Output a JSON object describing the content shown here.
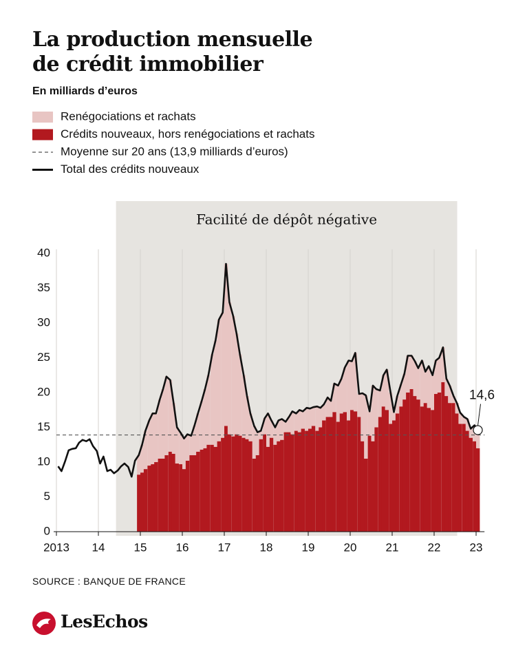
{
  "chart_data": {
    "type": "stacked-bar-line",
    "title": "La production mensuelle de crédit immobilier",
    "subtitle": "En milliards d’euros",
    "source": "SOURCE : BANQUE DE FRANCE",
    "brand": "LesEchos",
    "shaded_region": {
      "label": "Facilité de dépôt négative",
      "x": [
        2014.42,
        2022.55
      ]
    },
    "average": {
      "label": "Moyenne sur 20 ans (13,9 milliards d’euros)",
      "value": 13.9
    },
    "annotation": {
      "label": "14,6",
      "x": 2023,
      "y": 14.6
    },
    "xlim": [
      2013,
      2023.2
    ],
    "ylim": [
      0,
      40
    ],
    "yticks": [
      0,
      5,
      10,
      15,
      20,
      25,
      30,
      35,
      40
    ],
    "xticks": [
      {
        "value": 2013,
        "label": "2013"
      },
      {
        "value": 2014,
        "label": "14"
      },
      {
        "value": 2015,
        "label": "15"
      },
      {
        "value": 2016,
        "label": "16"
      },
      {
        "value": 2017,
        "label": "17"
      },
      {
        "value": 2018,
        "label": "18"
      },
      {
        "value": 2019,
        "label": "19"
      },
      {
        "value": 2020,
        "label": "20"
      },
      {
        "value": 2021,
        "label": "21"
      },
      {
        "value": 2022,
        "label": "22"
      },
      {
        "value": 2023,
        "label": "23"
      }
    ],
    "grid": true,
    "x": [
      2013,
      2013.08,
      2013.17,
      2013.25,
      2013.33,
      2013.42,
      2013.5,
      2013.58,
      2013.67,
      2013.75,
      2013.83,
      2013.92,
      2014,
      2014.08,
      2014.17,
      2014.25,
      2014.33,
      2014.42,
      2014.5,
      2014.58,
      2014.67,
      2014.75,
      2014.83,
      2014.92,
      2015,
      2015.08,
      2015.17,
      2015.25,
      2015.33,
      2015.42,
      2015.5,
      2015.58,
      2015.67,
      2015.75,
      2015.83,
      2015.92,
      2016,
      2016.08,
      2016.17,
      2016.25,
      2016.33,
      2016.42,
      2016.5,
      2016.58,
      2016.67,
      2016.75,
      2016.83,
      2016.92,
      2017,
      2017.08,
      2017.17,
      2017.25,
      2017.33,
      2017.42,
      2017.5,
      2017.58,
      2017.67,
      2017.75,
      2017.83,
      2017.92,
      2018,
      2018.08,
      2018.17,
      2018.25,
      2018.33,
      2018.42,
      2018.5,
      2018.58,
      2018.67,
      2018.75,
      2018.83,
      2018.92,
      2019,
      2019.08,
      2019.17,
      2019.25,
      2019.33,
      2019.42,
      2019.5,
      2019.58,
      2019.67,
      2019.75,
      2019.83,
      2019.92,
      2020,
      2020.08,
      2020.17,
      2020.25,
      2020.33,
      2020.42,
      2020.5,
      2020.58,
      2020.67,
      2020.75,
      2020.83,
      2020.92,
      2021,
      2021.08,
      2021.17,
      2021.25,
      2021.33,
      2021.42,
      2021.5,
      2021.58,
      2021.67,
      2021.75,
      2021.83,
      2021.92,
      2022,
      2022.08,
      2022.17,
      2022.25,
      2022.33,
      2022.42,
      2022.5,
      2022.58,
      2022.67,
      2022.75,
      2022.83,
      2022.92,
      2023
    ],
    "series": [
      {
        "name": "Renégociations et rachats",
        "type": "bar",
        "color": "#e8c5c3",
        "values": [
          null,
          null,
          null,
          null,
          null,
          null,
          null,
          null,
          null,
          null,
          null,
          null,
          null,
          null,
          null,
          null,
          null,
          null,
          null,
          null,
          null,
          null,
          null,
          2.8,
          4.0,
          5.5,
          6.5,
          7.3,
          7.0,
          8.5,
          10.0,
          11.3,
          10.3,
          7.3,
          5.2,
          4.5,
          4.4,
          3.8,
          2.8,
          4.3,
          5.5,
          7.0,
          8.5,
          10.0,
          13.0,
          15.3,
          17.5,
          18.0,
          23.3,
          19.0,
          17.3,
          14.5,
          11.7,
          9.0,
          6.2,
          4.0,
          4.7,
          3.3,
          1.2,
          2.3,
          4.8,
          2.5,
          2.5,
          3.0,
          3.0,
          1.5,
          2.2,
          3.3,
          2.5,
          3.2,
          2.5,
          3.3,
          2.9,
          2.7,
          3.5,
          2.8,
          2.3,
          2.8,
          2.3,
          4.1,
          5.2,
          5.0,
          6.4,
          8.6,
          7.0,
          8.4,
          3.3,
          6.9,
          9.1,
          3.5,
          8.0,
          5.5,
          3.8,
          4.5,
          5.8,
          4.5,
          1.2,
          2.5,
          3.2,
          3.7,
          5.3,
          4.8,
          5.0,
          4.5,
          6.6,
          4.5,
          6.0,
          5.0,
          4.8,
          5.0,
          5.0,
          2.5,
          2.5,
          1.0,
          1.5,
          1.6,
          1.0,
          1.7,
          1.3,
          2.3,
          2.6
        ]
      },
      {
        "name": "Crédits nouveaux, hors renégociations et rachats",
        "type": "bar",
        "color": "#b2191f",
        "values": [
          null,
          null,
          null,
          null,
          null,
          null,
          null,
          null,
          null,
          null,
          null,
          null,
          null,
          null,
          null,
          null,
          null,
          null,
          null,
          null,
          null,
          null,
          null,
          8.2,
          8.5,
          9.0,
          9.5,
          9.7,
          10.0,
          10.5,
          10.5,
          11.0,
          11.5,
          11.2,
          9.8,
          9.7,
          9.0,
          10.2,
          11.0,
          11.0,
          11.5,
          11.8,
          12.0,
          12.5,
          12.5,
          12.2,
          13.0,
          13.5,
          15.2,
          14.0,
          13.7,
          14.0,
          13.8,
          13.5,
          13.3,
          13.0,
          10.5,
          11.0,
          13.3,
          14.0,
          12.2,
          13.5,
          12.5,
          13.0,
          13.2,
          14.3,
          14.3,
          14.0,
          14.5,
          14.3,
          14.8,
          14.5,
          14.8,
          15.2,
          14.5,
          15.0,
          16.0,
          16.5,
          16.5,
          17.2,
          15.8,
          17.0,
          17.2,
          16.0,
          17.5,
          17.3,
          16.5,
          13.0,
          10.5,
          13.8,
          13.0,
          15.0,
          16.5,
          18.0,
          17.5,
          15.5,
          16.0,
          17.0,
          18.0,
          19.0,
          20.0,
          20.5,
          19.5,
          19.0,
          18.0,
          18.5,
          17.8,
          17.5,
          19.8,
          20.0,
          21.5,
          19.5,
          18.5,
          18.5,
          17.0,
          15.5,
          15.5,
          14.5,
          13.5,
          13.0,
          12.0
        ]
      },
      {
        "name": "Total des crédits nouveaux",
        "type": "line",
        "color": "#111111",
        "values": [
          9.4,
          8.7,
          10.2,
          11.7,
          11.9,
          12.0,
          12.8,
          13.2,
          13.0,
          13.3,
          12.3,
          11.6,
          9.8,
          10.8,
          8.7,
          8.9,
          8.4,
          8.8,
          9.4,
          9.8,
          9.3,
          7.9,
          10.2,
          11.0,
          12.5,
          14.5,
          16.0,
          17.0,
          17.0,
          19.0,
          20.5,
          22.3,
          21.8,
          18.5,
          15.0,
          14.2,
          13.4,
          14.0,
          13.8,
          15.3,
          17.0,
          18.8,
          20.5,
          22.5,
          25.5,
          27.5,
          30.5,
          31.5,
          38.5,
          33.0,
          31.0,
          28.5,
          25.5,
          22.5,
          19.5,
          17.0,
          15.2,
          14.3,
          14.5,
          16.3,
          17.0,
          16.0,
          15.0,
          16.0,
          16.2,
          15.8,
          16.5,
          17.3,
          17.0,
          17.5,
          17.3,
          17.8,
          17.7,
          17.9,
          18.0,
          17.8,
          18.3,
          19.3,
          18.8,
          21.3,
          21.0,
          22.0,
          23.6,
          24.6,
          24.5,
          25.7,
          19.8,
          19.9,
          19.6,
          17.3,
          21.0,
          20.5,
          20.3,
          22.5,
          23.3,
          20.0,
          17.2,
          19.5,
          21.2,
          22.7,
          25.3,
          25.3,
          24.5,
          23.5,
          24.6,
          23.0,
          23.8,
          22.5,
          24.6,
          25.0,
          26.5,
          22.0,
          21.0,
          19.5,
          18.5,
          17.1,
          16.5,
          16.2,
          14.8,
          15.3,
          14.6
        ]
      }
    ]
  }
}
